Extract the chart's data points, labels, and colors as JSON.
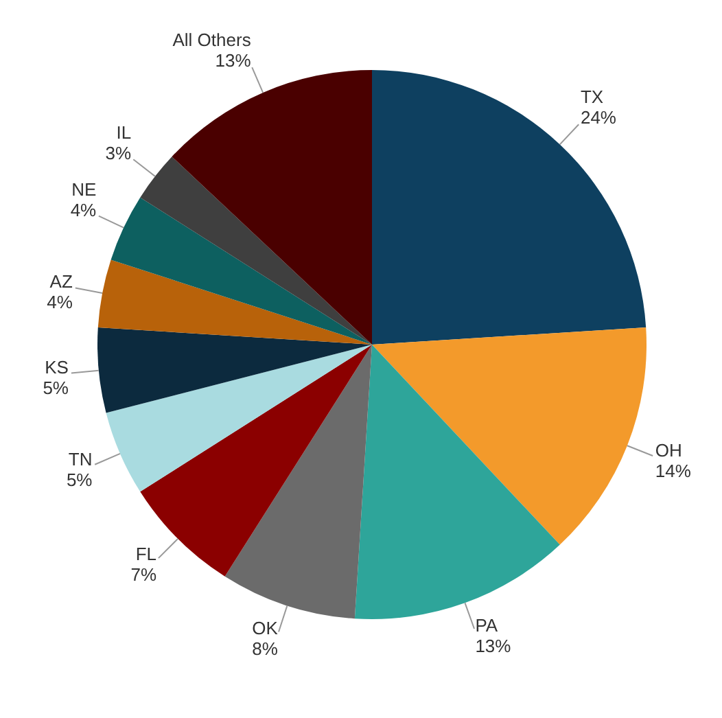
{
  "chart_data": {
    "type": "pie",
    "categories": [
      "TX",
      "OH",
      "PA",
      "OK",
      "FL",
      "TN",
      "KS",
      "AZ",
      "NE",
      "IL",
      "All Others"
    ],
    "values": [
      24,
      14,
      13,
      8,
      7,
      5,
      5,
      4,
      4,
      3,
      13
    ],
    "value_labels": [
      "24%",
      "14%",
      "13%",
      "8%",
      "7%",
      "5%",
      "5%",
      "4%",
      "4%",
      "3%",
      "13%"
    ],
    "colors": [
      "#0e4060",
      "#f39a2b",
      "#2ea59a",
      "#6b6b6b",
      "#8b0000",
      "#a9dbe0",
      "#0c2a3e",
      "#b8620a",
      "#0d6060",
      "#3f3f3f",
      "#4a0000"
    ]
  }
}
